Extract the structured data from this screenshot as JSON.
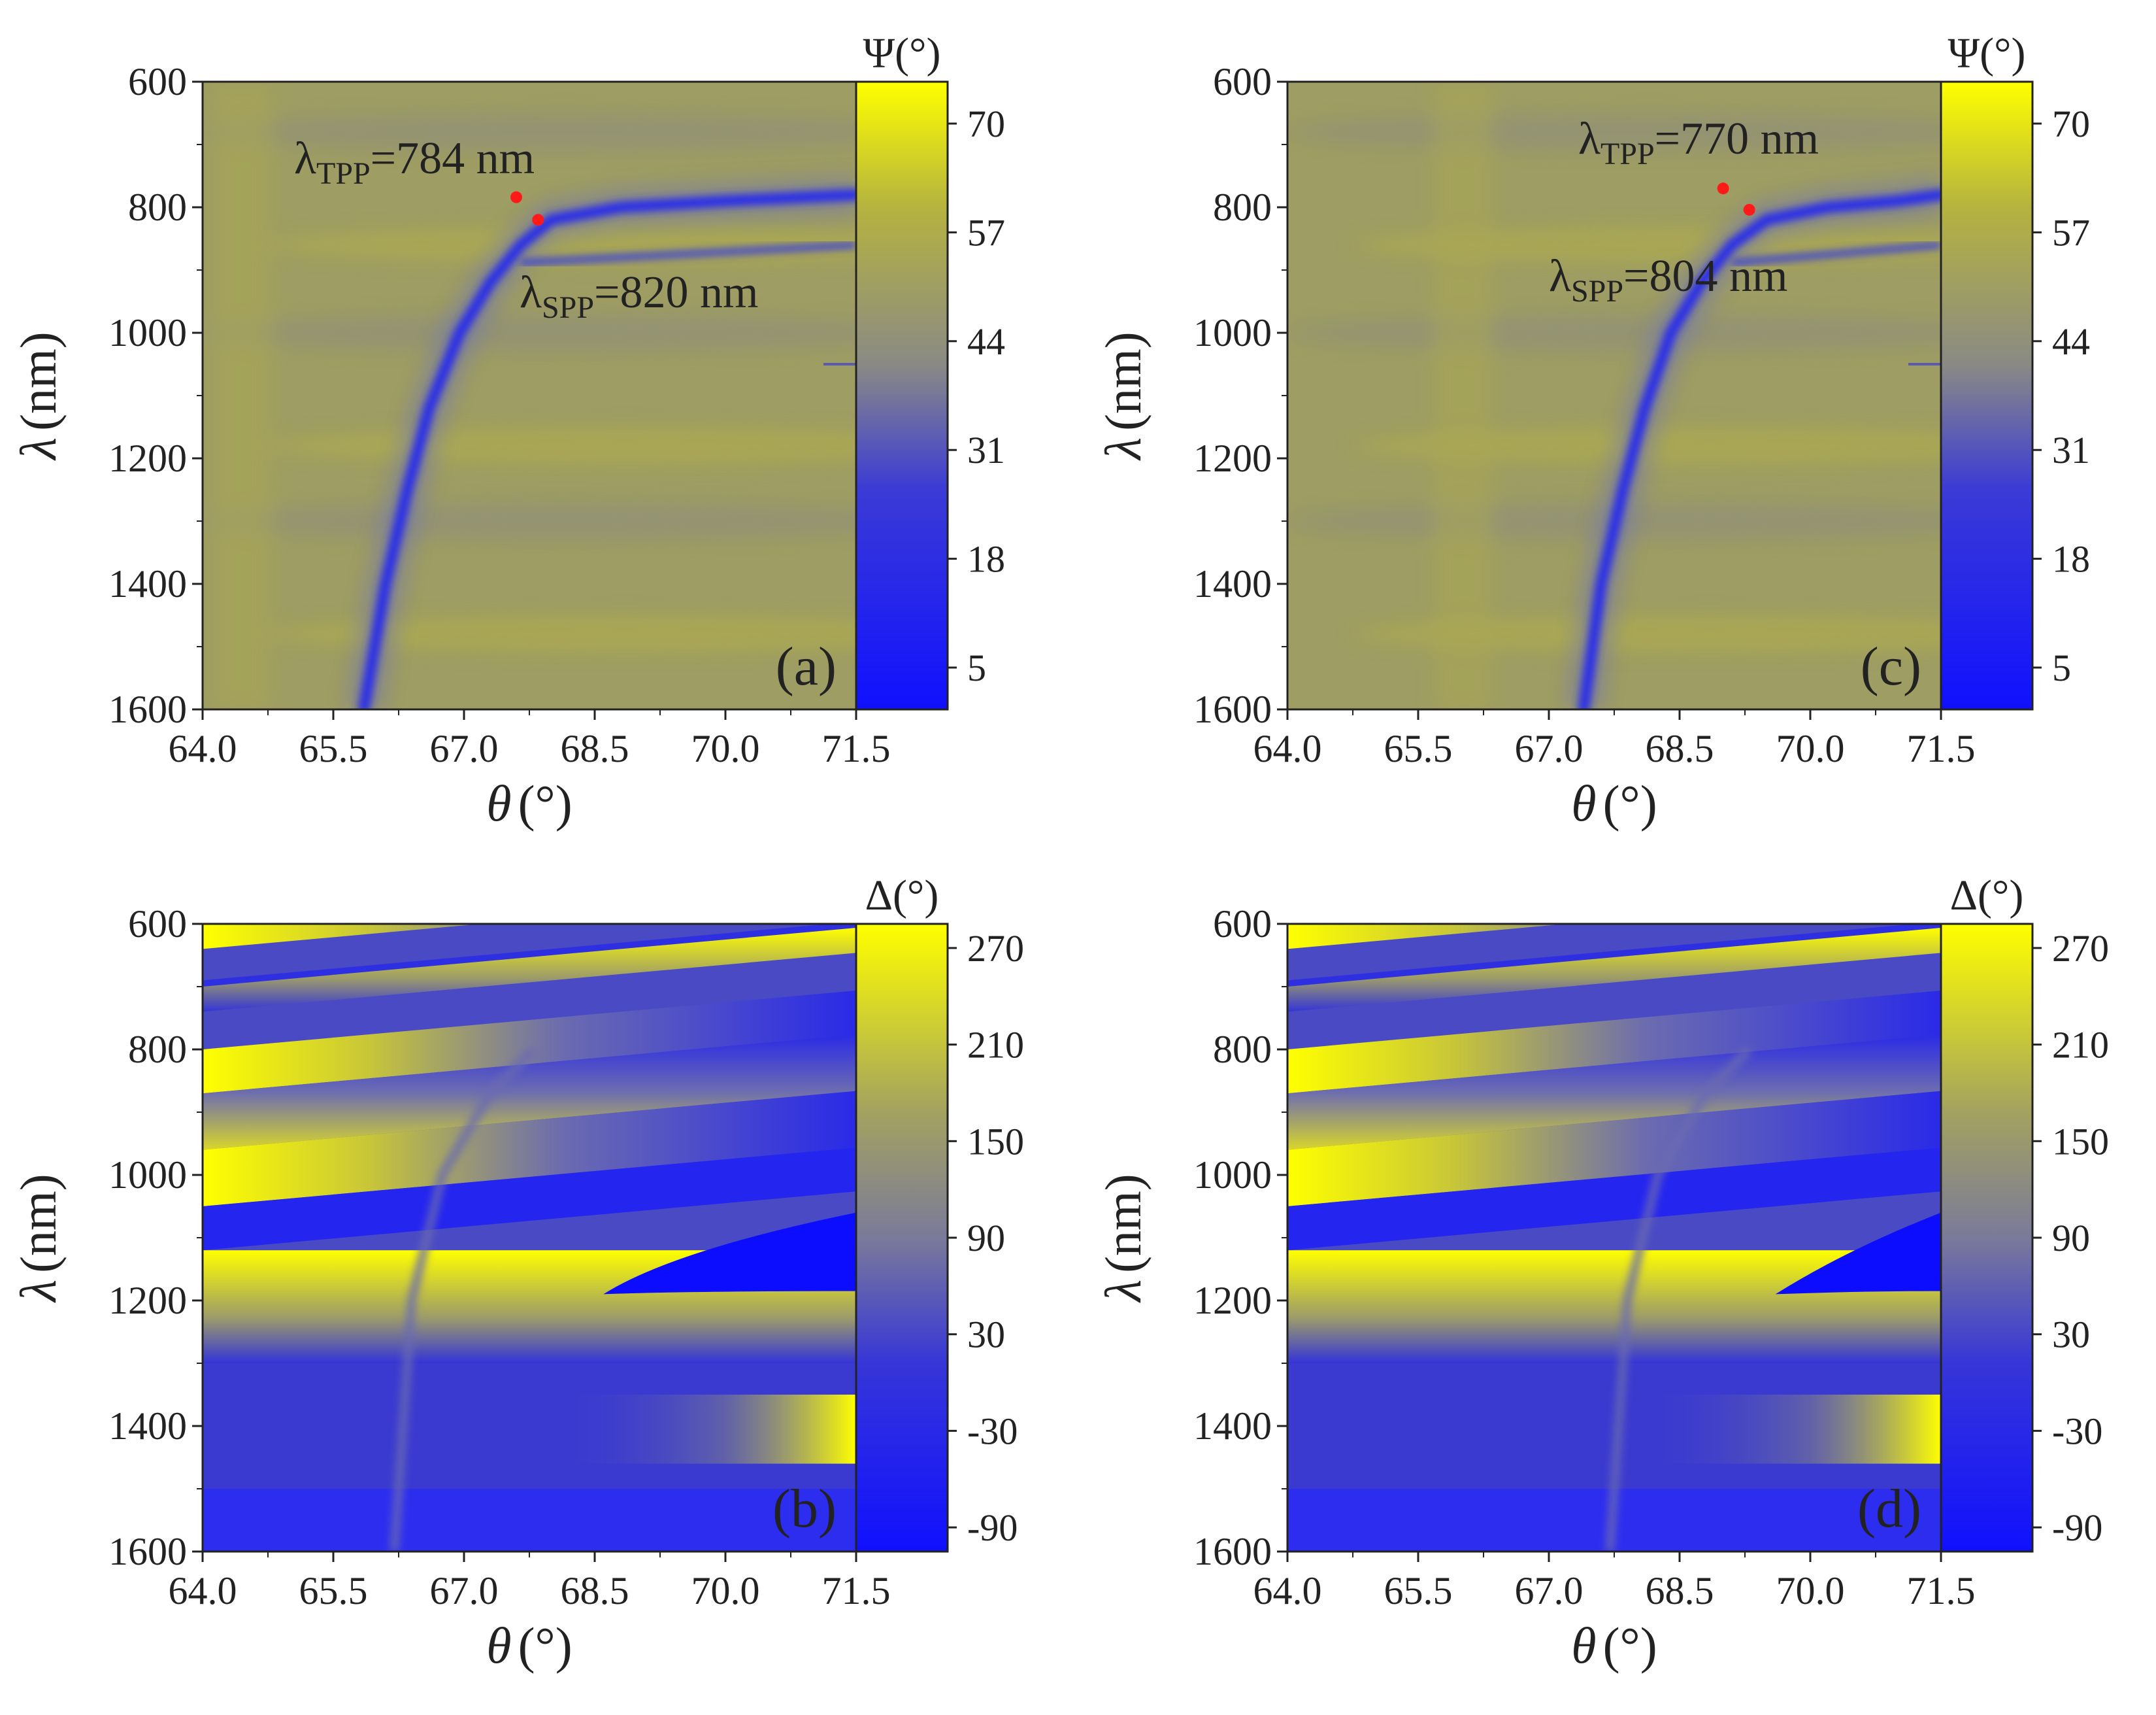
{
  "colors": {
    "low": "#1a1aff",
    "mid": "#8f8f78",
    "high": "#ffff00",
    "background": "#9e9d63",
    "marker": "#ff1a1a",
    "axis": "#222222"
  },
  "chart_data": [
    {
      "id": "a",
      "type": "heatmap",
      "panel_label": "(a)",
      "quantity": "Psi",
      "colorbar_title": "Ψ(°)",
      "colorbar_ticks": [
        "5",
        "18",
        "31",
        "44",
        "57",
        "70"
      ],
      "colorbar_range": [
        0,
        75
      ],
      "xlabel_symbol": "θ",
      "xlabel_unit": "(°)",
      "ylabel_symbol": "λ",
      "ylabel_unit": "(nm)",
      "xlim": [
        64.0,
        71.5
      ],
      "ylim": [
        600,
        1600
      ],
      "x_ticks": [
        "64.0",
        "65.5",
        "67.0",
        "68.5",
        "70.0",
        "71.5"
      ],
      "y_ticks": [
        "600",
        "800",
        "1000",
        "1200",
        "1400",
        "1600"
      ],
      "resonance_curve": [
        [
          65.85,
          1600
        ],
        [
          66.1,
          1400
        ],
        [
          66.35,
          1250
        ],
        [
          66.6,
          1120
        ],
        [
          66.95,
          1000
        ],
        [
          67.3,
          920
        ],
        [
          67.65,
          860
        ],
        [
          68.0,
          820
        ],
        [
          68.8,
          800
        ],
        [
          70.0,
          790
        ],
        [
          71.5,
          780
        ]
      ],
      "markers": [
        {
          "label": "λTPP=784 nm",
          "sym": "λ",
          "sub": "TPP",
          "value": "=784 nm",
          "theta": 67.6,
          "lambda": 784
        },
        {
          "label": "λSPP=820 nm",
          "sym": "λ",
          "sub": "SPP",
          "value": "=820 nm",
          "theta": 67.85,
          "lambda": 820
        }
      ]
    },
    {
      "id": "b",
      "type": "heatmap",
      "panel_label": "(b)",
      "quantity": "Delta",
      "colorbar_title": "Δ(°)",
      "colorbar_ticks": [
        "-90",
        "-30",
        "30",
        "90",
        "150",
        "210",
        "270"
      ],
      "colorbar_range": [
        -105,
        285
      ],
      "xlabel_symbol": "θ",
      "xlabel_unit": "(°)",
      "ylabel_symbol": "λ",
      "ylabel_unit": "(nm)",
      "xlim": [
        64.0,
        71.5
      ],
      "ylim": [
        600,
        1600
      ],
      "x_ticks": [
        "64.0",
        "65.5",
        "67.0",
        "68.5",
        "70.0",
        "71.5"
      ],
      "y_ticks": [
        "600",
        "800",
        "1000",
        "1200",
        "1400",
        "1600"
      ],
      "branch_theta": 66.4,
      "pocket_tip": [
        68.6,
        1190
      ],
      "markers": []
    },
    {
      "id": "c",
      "type": "heatmap",
      "panel_label": "(c)",
      "quantity": "Psi",
      "colorbar_title": "Ψ(°)",
      "colorbar_ticks": [
        "5",
        "18",
        "31",
        "44",
        "57",
        "70"
      ],
      "colorbar_range": [
        0,
        75
      ],
      "xlabel_symbol": "θ",
      "xlabel_unit": "(°)",
      "ylabel_symbol": "λ",
      "ylabel_unit": "(nm)",
      "xlim": [
        64.0,
        71.5
      ],
      "ylim": [
        600,
        1600
      ],
      "x_ticks": [
        "64.0",
        "65.5",
        "67.0",
        "68.5",
        "70.0",
        "71.5"
      ],
      "y_ticks": [
        "600",
        "800",
        "1000",
        "1200",
        "1400",
        "1600"
      ],
      "resonance_curve": [
        [
          67.4,
          1600
        ],
        [
          67.6,
          1400
        ],
        [
          67.85,
          1250
        ],
        [
          68.1,
          1120
        ],
        [
          68.4,
          1000
        ],
        [
          68.75,
          920
        ],
        [
          69.1,
          860
        ],
        [
          69.5,
          820
        ],
        [
          70.2,
          800
        ],
        [
          71.0,
          790
        ],
        [
          71.5,
          780
        ]
      ],
      "markers": [
        {
          "label": "λTPP=770 nm",
          "sym": "λ",
          "sub": "TPP",
          "value": "=770 nm",
          "theta": 69.0,
          "lambda": 770
        },
        {
          "label": "λSPP=804 nm",
          "sym": "λ",
          "sub": "SPP",
          "value": "=804 nm",
          "theta": 69.3,
          "lambda": 804
        }
      ]
    },
    {
      "id": "d",
      "type": "heatmap",
      "panel_label": "(d)",
      "quantity": "Delta",
      "colorbar_title": "Δ(°)",
      "colorbar_ticks": [
        "-90",
        "-30",
        "30",
        "90",
        "150",
        "210",
        "270"
      ],
      "colorbar_range": [
        -105,
        285
      ],
      "xlabel_symbol": "θ",
      "xlabel_unit": "(°)",
      "ylabel_symbol": "λ",
      "ylabel_unit": "(nm)",
      "xlim": [
        64.0,
        71.5
      ],
      "ylim": [
        600,
        1600
      ],
      "x_ticks": [
        "64.0",
        "65.5",
        "67.0",
        "68.5",
        "70.0",
        "71.5"
      ],
      "y_ticks": [
        "600",
        "800",
        "1000",
        "1200",
        "1400",
        "1600"
      ],
      "branch_theta": 67.9,
      "pocket_tip": [
        69.6,
        1190
      ],
      "markers": []
    }
  ]
}
